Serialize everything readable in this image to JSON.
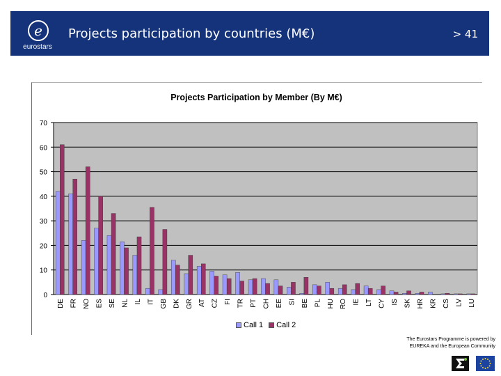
{
  "header": {
    "logo_text": "eurostars",
    "title": "Projects participation by countries (M€)",
    "page_number": "> 41"
  },
  "chart_data": {
    "type": "bar",
    "title": "Projects Participation by Member (By M€)",
    "xlabel": "",
    "ylabel": "",
    "ylim": [
      0,
      70
    ],
    "yticks": [
      0,
      10,
      20,
      30,
      40,
      50,
      60,
      70
    ],
    "categories": [
      "DE",
      "FR",
      "NO",
      "ES",
      "SE",
      "NL",
      "IL",
      "IT",
      "GB",
      "DK",
      "GR",
      "AT",
      "CZ",
      "FI",
      "TR",
      "PT",
      "CH",
      "EE",
      "SI",
      "BE",
      "PL",
      "HU",
      "RO",
      "IE",
      "LT",
      "CY",
      "IS",
      "SK",
      "HR",
      "KR",
      "CS",
      "LV",
      "LU"
    ],
    "series": [
      {
        "name": "Call 1",
        "color": "#9999ff",
        "values": [
          42,
          41,
          22,
          27,
          24,
          21.5,
          16,
          2.5,
          2,
          14,
          8.5,
          11.5,
          9.5,
          8,
          9,
          6,
          6.5,
          6,
          3,
          0.5,
          4,
          5,
          2.5,
          2,
          3.5,
          2,
          1.5,
          0.5,
          0.5,
          1,
          0.3,
          0.3,
          0.3
        ]
      },
      {
        "name": "Call 2",
        "color": "#993366",
        "values": [
          61,
          47,
          52,
          40,
          33,
          19,
          23.5,
          35.5,
          26.5,
          12,
          16,
          12.5,
          7.5,
          6.5,
          5.5,
          6.5,
          4.5,
          3.5,
          5,
          7,
          3.5,
          2.5,
          4,
          4.5,
          2.5,
          3.5,
          1,
          1.5,
          1,
          0,
          0.5,
          0.3,
          0.3
        ]
      }
    ],
    "legend_position": "bottom"
  },
  "footer": {
    "line1": "The Eurostars Programme is powered by",
    "line2": "EUREKA and the European Community"
  }
}
